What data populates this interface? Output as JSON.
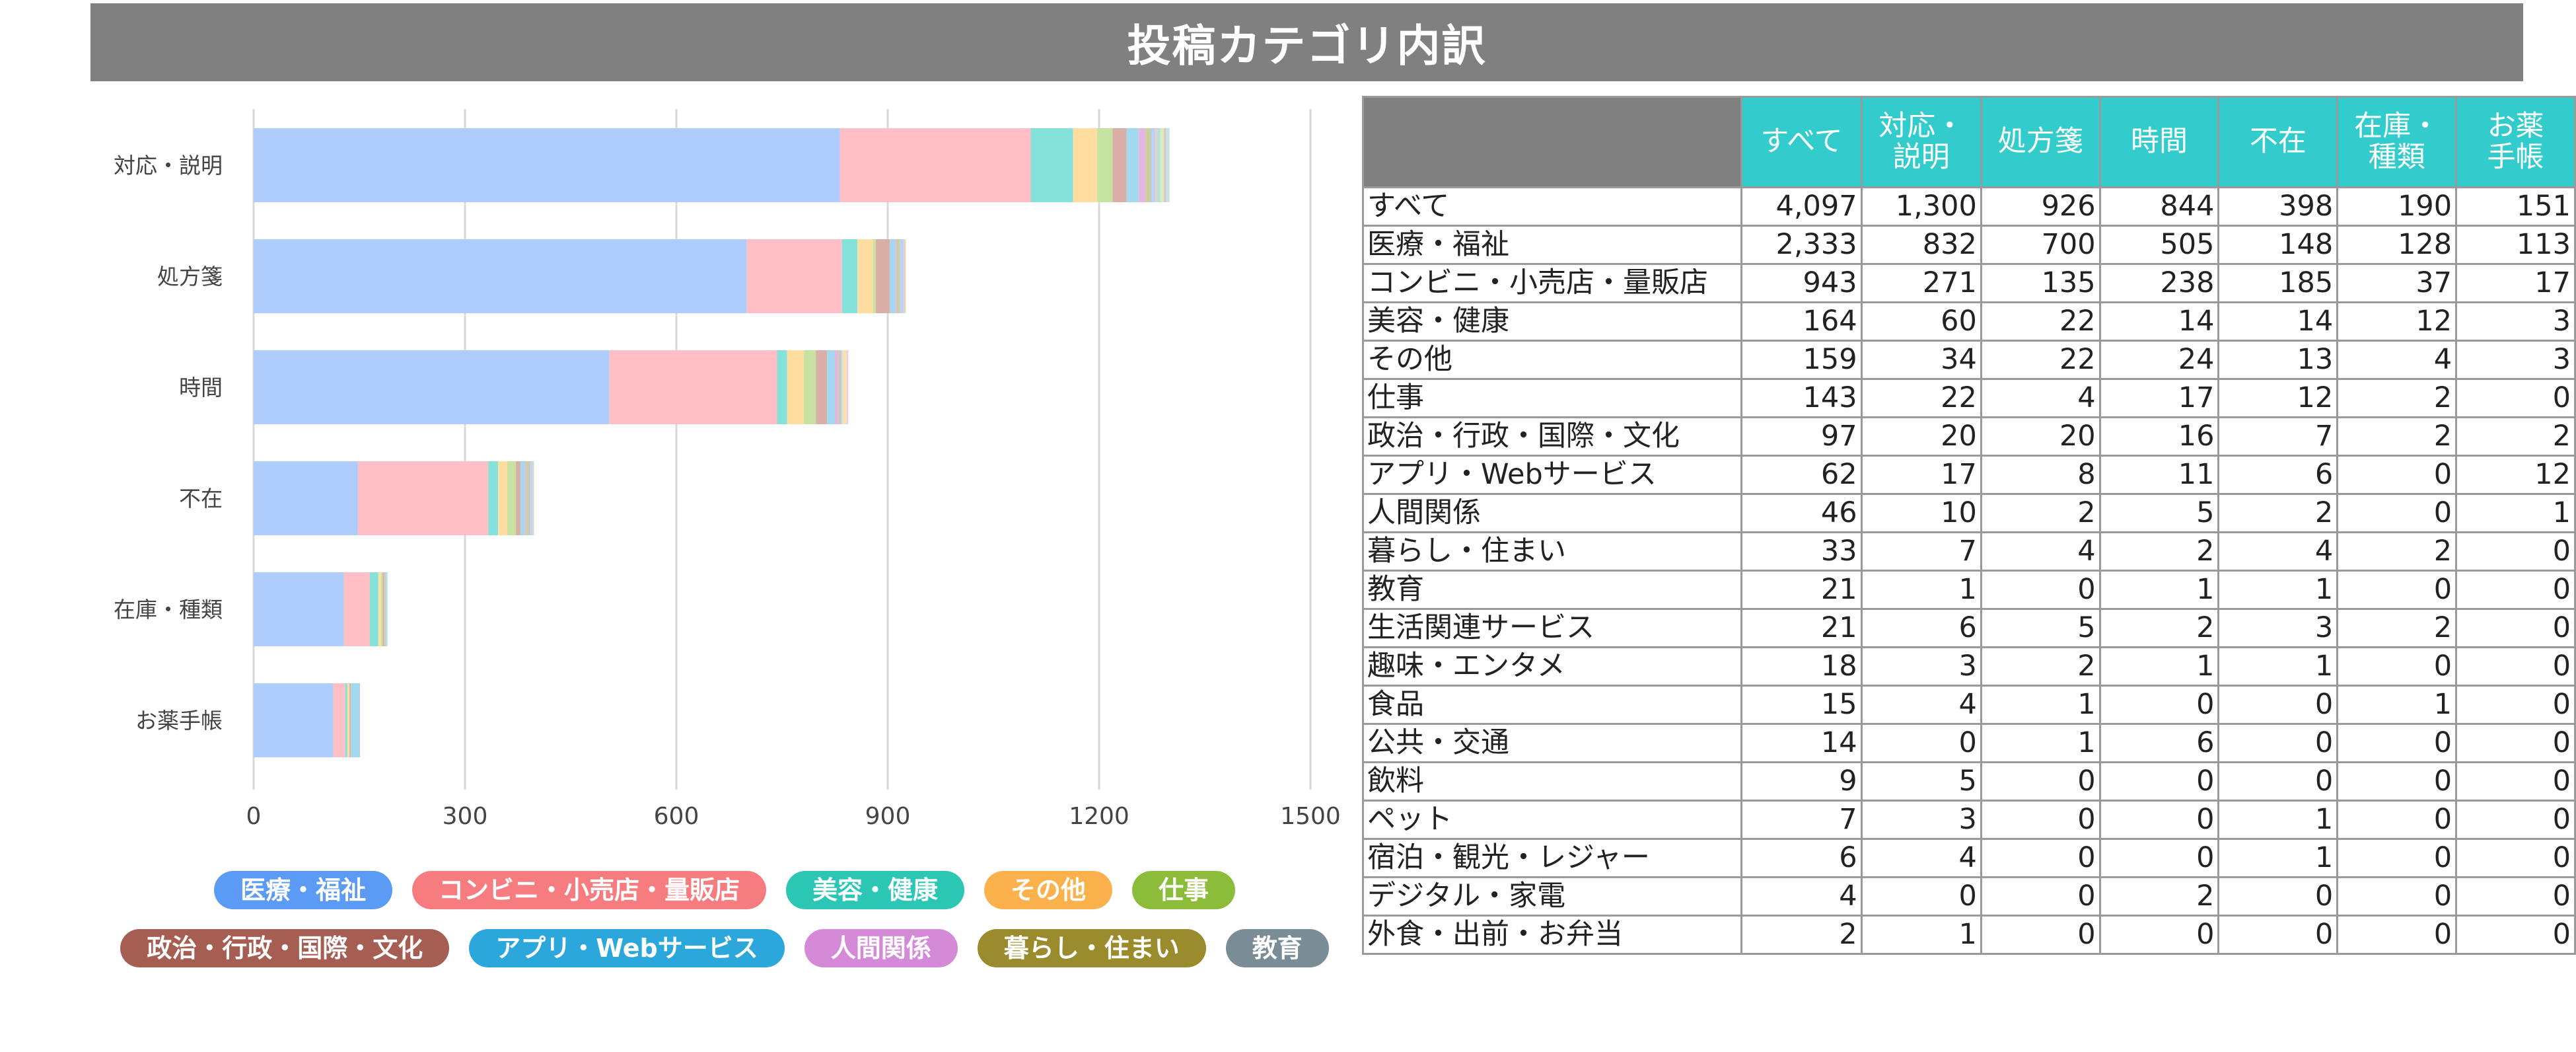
{
  "title": "投稿カテゴリ内訳",
  "chart_data": {
    "type": "bar",
    "orientation": "horizontal",
    "stacked": true,
    "categories": [
      "対応・説明",
      "処方箋",
      "時間",
      "不在",
      "在庫・種類",
      "お薬手帳"
    ],
    "xlim": [
      0,
      1500
    ],
    "xticks": [
      0,
      300,
      600,
      900,
      1200,
      1500
    ],
    "grid": true,
    "legend_position": "bottom",
    "series": [
      {
        "name": "医療・福祉",
        "color": "#aecdfc",
        "values": [
          832,
          700,
          505,
          148,
          128,
          113
        ]
      },
      {
        "name": "コンビニ・小売店・量販店",
        "color": "#ffbfc4",
        "values": [
          271,
          135,
          238,
          185,
          37,
          17
        ]
      },
      {
        "name": "美容・健康",
        "color": "#84e2db",
        "values": [
          60,
          22,
          14,
          14,
          12,
          3
        ]
      },
      {
        "name": "その他",
        "color": "#ffdca0",
        "values": [
          34,
          22,
          24,
          13,
          4,
          3
        ]
      },
      {
        "name": "仕事",
        "color": "#c6e3a1",
        "values": [
          22,
          4,
          17,
          12,
          2,
          0
        ]
      },
      {
        "name": "政治・行政・国際・文化",
        "color": "#d9afa8",
        "values": [
          20,
          20,
          16,
          7,
          2,
          2
        ]
      },
      {
        "name": "アプリ・Webサービス",
        "color": "#a3d9ee",
        "values": [
          17,
          8,
          11,
          6,
          0,
          12
        ]
      },
      {
        "name": "人間関係",
        "color": "#e4b6e4",
        "values": [
          10,
          2,
          5,
          2,
          0,
          1
        ]
      },
      {
        "name": "暮らし・住まい",
        "color": "#cfcf9a",
        "values": [
          7,
          4,
          2,
          4,
          2,
          0
        ]
      },
      {
        "name": "教育",
        "color": "#b5c1c7",
        "values": [
          1,
          0,
          1,
          1,
          0,
          0
        ]
      },
      {
        "name": "生活関連サービス",
        "color": "#b8d4f4",
        "values": [
          6,
          5,
          2,
          3,
          2,
          0
        ]
      },
      {
        "name": "趣味・エンタメ",
        "color": "#f8c8c8",
        "values": [
          3,
          2,
          1,
          1,
          0,
          0
        ]
      },
      {
        "name": "食品",
        "color": "#a8e6d8",
        "values": [
          4,
          1,
          0,
          0,
          1,
          0
        ]
      },
      {
        "name": "公共・交通",
        "color": "#f5e2b0",
        "values": [
          0,
          1,
          6,
          0,
          0,
          0
        ]
      },
      {
        "name": "飲料",
        "color": "#d6ecbc",
        "values": [
          5,
          0,
          0,
          0,
          0,
          0
        ]
      },
      {
        "name": "ペット",
        "color": "#e2c2bc",
        "values": [
          3,
          0,
          0,
          1,
          0,
          0
        ]
      },
      {
        "name": "宿泊・観光・レジャー",
        "color": "#bfe4f2",
        "values": [
          4,
          0,
          0,
          1,
          0,
          0
        ]
      },
      {
        "name": "デジタル・家電",
        "color": "#ecc8ec",
        "values": [
          0,
          0,
          2,
          0,
          0,
          0
        ]
      },
      {
        "name": "外食・出前・お弁当",
        "color": "#dedcb4",
        "values": [
          1,
          0,
          0,
          0,
          0,
          0
        ]
      }
    ]
  },
  "legend": [
    {
      "label": "医療・福祉",
      "color": "#5b9bf5"
    },
    {
      "label": "コンビニ・小売店・量販店",
      "color": "#f77c80"
    },
    {
      "label": "美容・健康",
      "color": "#2bc7b4"
    },
    {
      "label": "その他",
      "color": "#fbb14c"
    },
    {
      "label": "仕事",
      "color": "#8bbd3a"
    },
    {
      "label": "政治・行政・国際・文化",
      "color": "#a65e52"
    },
    {
      "label": "アプリ・Webサービス",
      "color": "#2ba7dc"
    },
    {
      "label": "人間関係",
      "color": "#d58ad8"
    },
    {
      "label": "暮らし・住まい",
      "color": "#9a8b2c"
    },
    {
      "label": "教育",
      "color": "#7a8d97"
    }
  ],
  "table": {
    "headers": [
      "",
      "すべて",
      "対応・\n説明",
      "処方箋",
      "時間",
      "不在",
      "在庫・\n種類",
      "お薬\n手帳"
    ],
    "rows": [
      [
        "すべて",
        "4,097",
        "1,300",
        "926",
        "844",
        "398",
        "190",
        "151"
      ],
      [
        "医療・福祉",
        "2,333",
        "832",
        "700",
        "505",
        "148",
        "128",
        "113"
      ],
      [
        "コンビニ・小売店・量販店",
        "943",
        "271",
        "135",
        "238",
        "185",
        "37",
        "17"
      ],
      [
        "美容・健康",
        "164",
        "60",
        "22",
        "14",
        "14",
        "12",
        "3"
      ],
      [
        "その他",
        "159",
        "34",
        "22",
        "24",
        "13",
        "4",
        "3"
      ],
      [
        "仕事",
        "143",
        "22",
        "4",
        "17",
        "12",
        "2",
        "0"
      ],
      [
        "政治・行政・国際・文化",
        "97",
        "20",
        "20",
        "16",
        "7",
        "2",
        "2"
      ],
      [
        "アプリ・Webサービス",
        "62",
        "17",
        "8",
        "11",
        "6",
        "0",
        "12"
      ],
      [
        "人間関係",
        "46",
        "10",
        "2",
        "5",
        "2",
        "0",
        "1"
      ],
      [
        "暮らし・住まい",
        "33",
        "7",
        "4",
        "2",
        "4",
        "2",
        "0"
      ],
      [
        "教育",
        "21",
        "1",
        "0",
        "1",
        "1",
        "0",
        "0"
      ],
      [
        "生活関連サービス",
        "21",
        "6",
        "5",
        "2",
        "3",
        "2",
        "0"
      ],
      [
        "趣味・エンタメ",
        "18",
        "3",
        "2",
        "1",
        "1",
        "0",
        "0"
      ],
      [
        "食品",
        "15",
        "4",
        "1",
        "0",
        "0",
        "1",
        "0"
      ],
      [
        "公共・交通",
        "14",
        "0",
        "1",
        "6",
        "0",
        "0",
        "0"
      ],
      [
        "飲料",
        "9",
        "5",
        "0",
        "0",
        "0",
        "0",
        "0"
      ],
      [
        "ペット",
        "7",
        "3",
        "0",
        "0",
        "1",
        "0",
        "0"
      ],
      [
        "宿泊・観光・レジャー",
        "6",
        "4",
        "0",
        "0",
        "1",
        "0",
        "0"
      ],
      [
        "デジタル・家電",
        "4",
        "0",
        "0",
        "2",
        "0",
        "0",
        "0"
      ],
      [
        "外食・出前・お弁当",
        "2",
        "1",
        "0",
        "0",
        "0",
        "0",
        "0"
      ]
    ]
  }
}
